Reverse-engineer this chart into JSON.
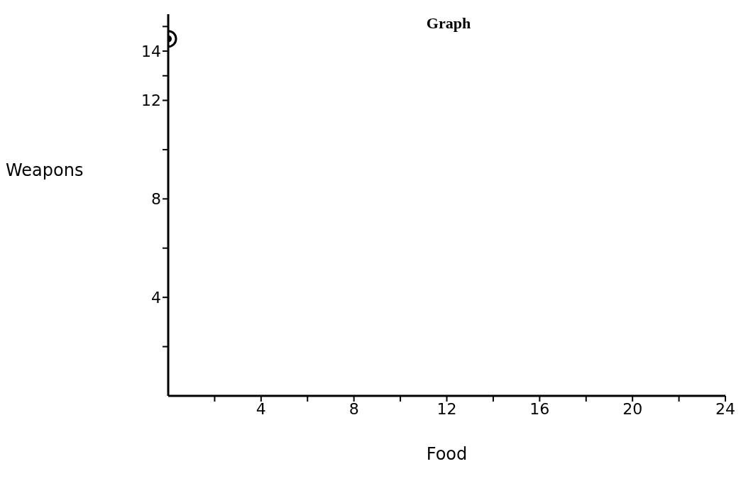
{
  "chart_data": {
    "type": "scatter",
    "title": "Graph",
    "xlabel": "Food",
    "ylabel": "Weapons",
    "x": [
      0
    ],
    "values": [
      14.5
    ],
    "color": "#000000",
    "marker": "circle",
    "xlim": [
      0,
      24
    ],
    "xticks": [
      {
        "value": 2,
        "label": null
      },
      4,
      {
        "value": 6,
        "label": null
      },
      8,
      {
        "value": 10,
        "label": null
      },
      12,
      {
        "value": 14,
        "label": null
      },
      16,
      {
        "value": 18,
        "label": null
      },
      20,
      {
        "value": 22,
        "label": null
      },
      24
    ],
    "ylim": [
      0,
      15.5
    ],
    "yticks": [
      {
        "value": 2,
        "label": null
      },
      4,
      {
        "value": 6,
        "label": null
      },
      8,
      {
        "value": 10,
        "label": null
      },
      12,
      {
        "value": 13,
        "label": null
      },
      14,
      {
        "value": 15,
        "label": null
      }
    ],
    "grid": false,
    "legend": false
  }
}
